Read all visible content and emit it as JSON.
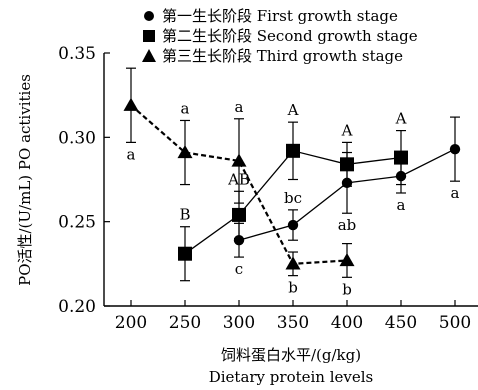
{
  "chart_data": {
    "type": "line",
    "xlabel": "饲料蛋白水平/(g/kg)",
    "xlabel_en": "Dietary protein levels",
    "ylabel": "PO活性/(U/mL) PO activities",
    "xticks": [
      200,
      250,
      300,
      350,
      400,
      450,
      500
    ],
    "ylim": [
      0.2,
      0.35
    ],
    "yticks": [
      "0.20",
      "0.25",
      "0.30",
      "0.35"
    ],
    "legend_position": "top",
    "series": [
      {
        "name": "第一生长阶段 First growth stage",
        "marker": "circle",
        "line_style": "solid",
        "points": [
          {
            "x": 300,
            "y": 0.239,
            "err": 0.01,
            "label": "c",
            "label_pos": "below"
          },
          {
            "x": 350,
            "y": 0.248,
            "err": 0.009,
            "label": "bc",
            "label_pos": "above"
          },
          {
            "x": 400,
            "y": 0.273,
            "err": 0.018,
            "label": "ab",
            "label_pos": "below"
          },
          {
            "x": 450,
            "y": 0.277,
            "err": 0.01,
            "label": "a",
            "label_pos": "below"
          },
          {
            "x": 500,
            "y": 0.293,
            "err": 0.019,
            "label": "a",
            "label_pos": "below"
          }
        ]
      },
      {
        "name": "第二生长阶段 Second growth stage",
        "marker": "square",
        "line_style": "solid",
        "points": [
          {
            "x": 250,
            "y": 0.231,
            "err": 0.016,
            "label": "B",
            "label_pos": "above"
          },
          {
            "x": 300,
            "y": 0.254,
            "err": 0.014,
            "label": "AB",
            "label_pos": "above"
          },
          {
            "x": 350,
            "y": 0.292,
            "err": 0.017,
            "label": "A",
            "label_pos": "above"
          },
          {
            "x": 400,
            "y": 0.284,
            "err": 0.013,
            "label": "A",
            "label_pos": "above"
          },
          {
            "x": 450,
            "y": 0.288,
            "err": 0.016,
            "label": "A",
            "label_pos": "above"
          }
        ]
      },
      {
        "name": "第三生长阶段 Third growth stage",
        "marker": "triangle",
        "line_style": "dashed",
        "points": [
          {
            "x": 200,
            "y": 0.319,
            "err": 0.022,
            "label": "a",
            "label_pos": "below"
          },
          {
            "x": 250,
            "y": 0.291,
            "err": 0.019,
            "label": "a",
            "label_pos": "above"
          },
          {
            "x": 300,
            "y": 0.286,
            "err": 0.025,
            "label": "a",
            "label_pos": "above"
          },
          {
            "x": 350,
            "y": 0.225,
            "err": 0.007,
            "label": "b",
            "label_pos": "below"
          },
          {
            "x": 400,
            "y": 0.227,
            "err": 0.01,
            "label": "b",
            "label_pos": "below"
          }
        ]
      }
    ]
  }
}
